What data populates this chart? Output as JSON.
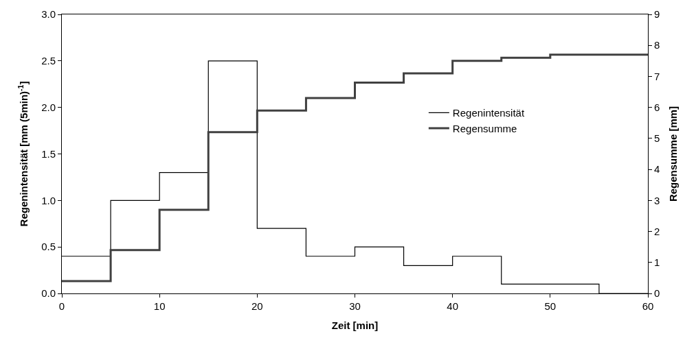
{
  "chart_data": {
    "type": "step",
    "xlabel": "Zeit [min]",
    "ylabel": "Regenintensität [mm (5min)$^{-1}$]",
    "y2label": "Regensumme [mm]",
    "x": [
      0,
      5,
      10,
      15,
      20,
      25,
      30,
      35,
      40,
      45,
      50,
      55,
      60
    ],
    "series": [
      {
        "name": "Regenintensität",
        "color": "#000000",
        "values": [
          0.4,
          1.0,
          1.3,
          2.5,
          0.7,
          0.4,
          0.5,
          0.3,
          0.4,
          0.1,
          0.1,
          0.0,
          0.0
        ]
      },
      {
        "name": "Regensumme",
        "color": "#404040",
        "axis": "y2",
        "values": [
          0.4,
          1.4,
          2.7,
          5.2,
          5.9,
          6.3,
          6.8,
          7.1,
          7.5,
          7.6,
          7.7,
          7.7,
          7.7
        ]
      }
    ],
    "xlim": [
      0,
      60
    ],
    "xticks": [
      0,
      10,
      20,
      30,
      40,
      50,
      60
    ],
    "ylim": [
      0,
      3.0
    ],
    "yticks": [
      {
        "value": 0,
        "label": "0.0"
      },
      {
        "value": 0.5,
        "label": "0.5"
      },
      {
        "value": 1.0,
        "label": "1.0"
      },
      {
        "value": 1.5,
        "label": "1.5"
      },
      {
        "value": 2.0,
        "label": "2.0"
      },
      {
        "value": 2.5,
        "label": "2.5"
      },
      {
        "value": 3.0,
        "label": "3.0"
      }
    ],
    "y2lim": [
      0,
      9
    ],
    "y2ticks": [
      0,
      1,
      2,
      3,
      4,
      5,
      6,
      7,
      8,
      9
    ],
    "legend": "right"
  }
}
